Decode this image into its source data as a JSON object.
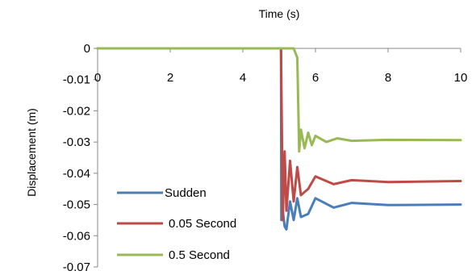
{
  "chart_data": {
    "type": "line",
    "xlabel": "Time (s)",
    "ylabel": "Displacement (m)",
    "xlim": [
      0,
      10
    ],
    "ylim": [
      -0.07,
      0
    ],
    "xticks": [
      0,
      2,
      4,
      6,
      8,
      10
    ],
    "xtick_labels": [
      "0",
      "2",
      "4",
      "6",
      "8",
      "10"
    ],
    "yticks": [
      0,
      -0.01,
      -0.02,
      -0.03,
      -0.04,
      -0.05,
      -0.06,
      -0.07
    ],
    "ytick_labels": [
      "0",
      "-0.01",
      "-0.02",
      "-0.03",
      "-0.04",
      "-0.05",
      "-0.06",
      "-0.07"
    ],
    "x_axis_position": "top",
    "grid": false,
    "legend": "bottom-left",
    "series": [
      {
        "name": "Sudden",
        "color": "#4a7ebb",
        "x": [
          0,
          5.05,
          5.06,
          5.1,
          5.15,
          5.2,
          5.3,
          5.4,
          5.5,
          5.6,
          5.8,
          6.0,
          6.5,
          7.0,
          8.0,
          10.0
        ],
        "y": [
          0,
          0,
          -0.055,
          -0.052,
          -0.057,
          -0.058,
          -0.049,
          -0.055,
          -0.048,
          -0.054,
          -0.053,
          -0.048,
          -0.051,
          -0.0495,
          -0.0502,
          -0.05
        ]
      },
      {
        "name": "0.05 Second",
        "color": "#be4b48",
        "x": [
          0,
          5.05,
          5.1,
          5.15,
          5.2,
          5.3,
          5.4,
          5.5,
          5.6,
          5.8,
          6.0,
          6.5,
          7.0,
          8.0,
          10.0
        ],
        "y": [
          0,
          0,
          -0.055,
          -0.033,
          -0.052,
          -0.036,
          -0.049,
          -0.038,
          -0.047,
          -0.045,
          -0.041,
          -0.0435,
          -0.0422,
          -0.0428,
          -0.0425
        ]
      },
      {
        "name": "0.5 Second",
        "color": "#98b954",
        "x": [
          0,
          5.4,
          5.5,
          5.55,
          5.6,
          5.7,
          5.8,
          5.9,
          6.0,
          6.3,
          6.6,
          7.0,
          8.0,
          10.0
        ],
        "y": [
          0,
          0,
          -0.003,
          -0.033,
          -0.026,
          -0.032,
          -0.027,
          -0.031,
          -0.028,
          -0.03,
          -0.0288,
          -0.0296,
          -0.0293,
          -0.0294
        ]
      }
    ]
  }
}
